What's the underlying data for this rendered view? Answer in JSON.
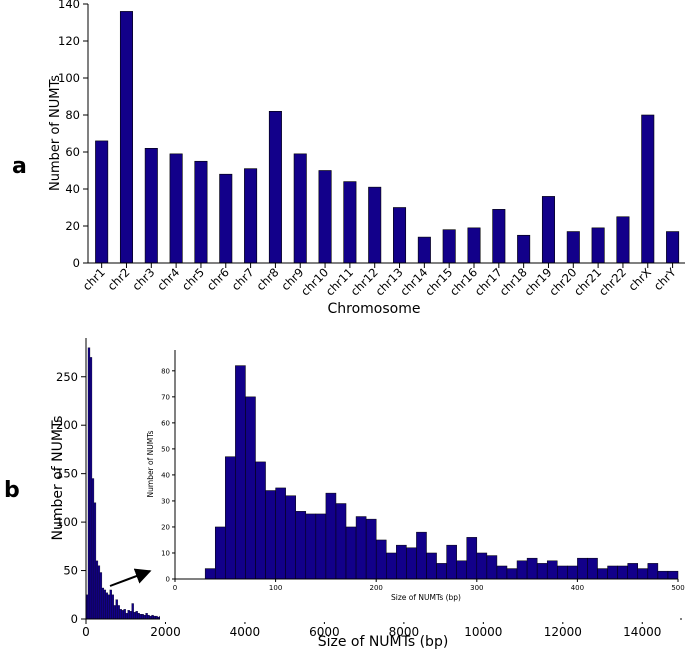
{
  "chart_data": [
    {
      "type": "bar",
      "panel_label": "a",
      "title": "",
      "xlabel": "Chromosome",
      "ylabel": "Number of NUMTs",
      "ylim": [
        0,
        140
      ],
      "yticks": [
        0,
        20,
        40,
        60,
        80,
        100,
        120,
        140
      ],
      "categories": [
        "chr1",
        "chr2",
        "chr3",
        "chr4",
        "chr5",
        "chr6",
        "chr7",
        "chr8",
        "chr9",
        "chr10",
        "chr11",
        "chr12",
        "chr13",
        "chr14",
        "chr15",
        "chr16",
        "chr17",
        "chr18",
        "chr19",
        "chr20",
        "chr21",
        "chr22",
        "chrX",
        "chrY"
      ],
      "values": [
        66,
        136,
        62,
        59,
        55,
        48,
        51,
        82,
        59,
        50,
        44,
        41,
        30,
        14,
        18,
        19,
        29,
        15,
        36,
        17,
        19,
        25,
        80,
        17
      ],
      "color": "#12008a"
    },
    {
      "type": "bar",
      "panel_label": "b",
      "title": "",
      "xlabel": "Size of NUMTs (bp)",
      "ylabel": "Number of NUMTs",
      "xlim": [
        0,
        15000
      ],
      "ylim": [
        0,
        290
      ],
      "xticks": [
        0,
        2000,
        4000,
        6000,
        8000,
        10000,
        12000,
        14000
      ],
      "yticks": [
        0,
        50,
        100,
        150,
        200,
        250
      ],
      "bin_width": 50,
      "bins": [
        [
          0,
          25
        ],
        [
          50,
          280
        ],
        [
          100,
          270
        ],
        [
          150,
          145
        ],
        [
          200,
          120
        ],
        [
          250,
          60
        ],
        [
          300,
          55
        ],
        [
          350,
          48
        ],
        [
          400,
          32
        ],
        [
          450,
          30
        ],
        [
          500,
          27
        ],
        [
          550,
          25
        ],
        [
          600,
          30
        ],
        [
          650,
          25
        ],
        [
          700,
          14
        ],
        [
          750,
          20
        ],
        [
          800,
          14
        ],
        [
          850,
          10
        ],
        [
          900,
          9
        ],
        [
          950,
          10
        ],
        [
          1000,
          6
        ],
        [
          1050,
          9
        ],
        [
          1100,
          8
        ],
        [
          1150,
          16
        ],
        [
          1200,
          7
        ],
        [
          1250,
          8
        ],
        [
          1300,
          6
        ],
        [
          1350,
          5
        ],
        [
          1400,
          5
        ],
        [
          1450,
          4
        ],
        [
          1500,
          6
        ],
        [
          1550,
          4
        ],
        [
          1600,
          3
        ],
        [
          1650,
          4
        ],
        [
          1700,
          3
        ],
        [
          1750,
          3
        ],
        [
          1800,
          2
        ],
        [
          1850,
          3
        ],
        [
          1900,
          2
        ],
        [
          2000,
          2
        ],
        [
          2100,
          3
        ],
        [
          2200,
          2
        ],
        [
          2300,
          1
        ],
        [
          2400,
          2
        ],
        [
          2600,
          1
        ],
        [
          2800,
          2
        ],
        [
          3000,
          1
        ],
        [
          3200,
          1
        ],
        [
          3400,
          2
        ],
        [
          3600,
          1
        ],
        [
          3800,
          1
        ],
        [
          4000,
          2
        ],
        [
          4300,
          1
        ],
        [
          4600,
          1
        ],
        [
          4800,
          2
        ],
        [
          5100,
          1
        ],
        [
          5400,
          1
        ],
        [
          5700,
          2
        ],
        [
          6000,
          1
        ],
        [
          6300,
          1
        ],
        [
          6700,
          1
        ],
        [
          7000,
          1
        ],
        [
          7400,
          1
        ],
        [
          7800,
          1
        ],
        [
          8200,
          1
        ],
        [
          8700,
          1
        ],
        [
          9200,
          1
        ],
        [
          9800,
          1
        ],
        [
          10300,
          1
        ],
        [
          10900,
          1
        ],
        [
          11600,
          1
        ],
        [
          12200,
          1
        ],
        [
          12900,
          1
        ],
        [
          13500,
          1
        ],
        [
          14200,
          1
        ],
        [
          14800,
          1
        ]
      ],
      "color": "#12008a",
      "annotation": "arrow pointing from 0–500 bp region to inset"
    },
    {
      "type": "bar",
      "panel_label": "b-inset",
      "title": "",
      "xlabel": "Size of NUMTs (bp)",
      "ylabel": "Number of NUMTs",
      "xlim": [
        0,
        500
      ],
      "ylim": [
        0,
        88
      ],
      "xticks": [
        0,
        100,
        200,
        300,
        400,
        500
      ],
      "yticks": [
        0,
        10,
        20,
        30,
        40,
        50,
        60,
        70,
        80
      ],
      "bin_width": 10,
      "bins": [
        [
          30,
          4
        ],
        [
          40,
          20
        ],
        [
          50,
          47
        ],
        [
          60,
          82
        ],
        [
          70,
          70
        ],
        [
          80,
          45
        ],
        [
          90,
          34
        ],
        [
          100,
          35
        ],
        [
          110,
          32
        ],
        [
          120,
          26
        ],
        [
          130,
          25
        ],
        [
          140,
          25
        ],
        [
          150,
          33
        ],
        [
          160,
          29
        ],
        [
          170,
          20
        ],
        [
          180,
          24
        ],
        [
          190,
          23
        ],
        [
          200,
          15
        ],
        [
          210,
          10
        ],
        [
          220,
          13
        ],
        [
          230,
          12
        ],
        [
          240,
          18
        ],
        [
          250,
          10
        ],
        [
          260,
          6
        ],
        [
          270,
          13
        ],
        [
          280,
          7
        ],
        [
          290,
          16
        ],
        [
          300,
          10
        ],
        [
          310,
          9
        ],
        [
          320,
          5
        ],
        [
          330,
          4
        ],
        [
          340,
          7
        ],
        [
          350,
          8
        ],
        [
          360,
          6
        ],
        [
          370,
          7
        ],
        [
          380,
          5
        ],
        [
          390,
          5
        ],
        [
          400,
          8
        ],
        [
          410,
          8
        ],
        [
          420,
          4
        ],
        [
          430,
          5
        ],
        [
          440,
          5
        ],
        [
          450,
          6
        ],
        [
          460,
          4
        ],
        [
          470,
          6
        ],
        [
          480,
          3
        ],
        [
          490,
          3
        ]
      ],
      "color": "#12008a"
    }
  ]
}
